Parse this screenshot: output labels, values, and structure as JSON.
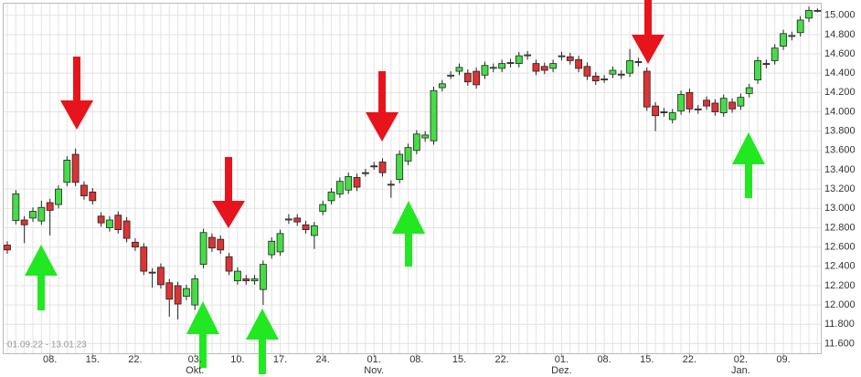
{
  "chart_data": {
    "type": "candlestick",
    "date_range": "01.09.22 - 13.01.23",
    "categories": [
      null,
      null,
      null,
      null,
      null,
      "08.",
      null,
      null,
      null,
      null,
      "15.",
      null,
      null,
      null,
      null,
      "22.",
      null,
      null,
      null,
      null,
      null,
      null,
      "03.",
      null,
      null,
      null,
      null,
      "10.",
      null,
      null,
      null,
      null,
      "17.",
      null,
      null,
      null,
      null,
      "24.",
      null,
      null,
      null,
      null,
      null,
      "01.",
      null,
      null,
      null,
      null,
      "08.",
      null,
      null,
      null,
      null,
      "15.",
      null,
      null,
      null,
      null,
      "22.",
      null,
      null,
      null,
      null,
      null,
      null,
      "01.",
      null,
      null,
      null,
      null,
      "08.",
      null,
      null,
      null,
      null,
      "15.",
      null,
      null,
      null,
      null,
      "22.",
      null,
      null,
      null,
      null,
      null,
      "02.",
      null,
      null,
      null,
      null,
      "09.",
      null,
      null,
      null,
      null
    ],
    "months": [
      null,
      null,
      null,
      null,
      null,
      null,
      null,
      null,
      null,
      null,
      null,
      null,
      null,
      null,
      null,
      null,
      null,
      null,
      null,
      null,
      null,
      null,
      "Okt.",
      null,
      null,
      null,
      null,
      null,
      null,
      null,
      null,
      null,
      null,
      null,
      null,
      null,
      null,
      null,
      null,
      null,
      null,
      null,
      null,
      "Nov.",
      null,
      null,
      null,
      null,
      null,
      null,
      null,
      null,
      null,
      null,
      null,
      null,
      null,
      null,
      null,
      null,
      null,
      null,
      null,
      null,
      null,
      "Dez.",
      null,
      null,
      null,
      null,
      null,
      null,
      null,
      null,
      null,
      null,
      null,
      null,
      null,
      null,
      null,
      null,
      null,
      null,
      null,
      null,
      "Jan.",
      null,
      null,
      null,
      null,
      null,
      null,
      null,
      null,
      null
    ],
    "open": [
      12620,
      12875,
      12880,
      12900,
      12870,
      13060,
      13040,
      13270,
      13560,
      13240,
      13170,
      12920,
      12800,
      12930,
      12870,
      12650,
      12600,
      12340,
      12390,
      12230,
      12200,
      12090,
      12000,
      12420,
      12700,
      12680,
      12500,
      12250,
      12270,
      12250,
      12160,
      12520,
      12550,
      12880,
      12900,
      12830,
      12720,
      12970,
      13080,
      13150,
      13190,
      13320,
      13370,
      13440,
      13480,
      13250,
      13300,
      13490,
      13600,
      13730,
      13700,
      14250,
      14370,
      14420,
      14400,
      14420,
      14380,
      14450,
      14450,
      14500,
      14500,
      14580,
      14500,
      14470,
      14450,
      14570,
      14570,
      14540,
      14470,
      14370,
      14330,
      14390,
      14390,
      14400,
      14520,
      14420,
      14060,
      14000,
      13920,
      14010,
      14200,
      14030,
      14120,
      14090,
      13990,
      14100,
      14060,
      14190,
      14330,
      14500,
      14530,
      14680,
      14780,
      14820,
      14970,
      15050
    ],
    "high": [
      12660,
      13190,
      12920,
      13010,
      13080,
      13100,
      13240,
      13540,
      13620,
      13280,
      13210,
      12960,
      12920,
      12970,
      12910,
      12690,
      12640,
      12380,
      12430,
      12270,
      12240,
      12210,
      12310,
      12790,
      12740,
      12720,
      12540,
      12390,
      12310,
      12310,
      12460,
      12700,
      12780,
      12940,
      12940,
      12870,
      12860,
      13080,
      13210,
      13320,
      13370,
      13360,
      13410,
      13480,
      13520,
      13290,
      13600,
      13670,
      13810,
      13800,
      14260,
      14330,
      14420,
      14500,
      14440,
      14460,
      14520,
      14500,
      14540,
      14550,
      14620,
      14630,
      14540,
      14510,
      14540,
      14620,
      14610,
      14580,
      14510,
      14410,
      14380,
      14470,
      14430,
      14650,
      14560,
      14460,
      14100,
      14040,
      14030,
      14220,
      14240,
      14070,
      14160,
      14130,
      14180,
      14140,
      14190,
      14290,
      14570,
      14540,
      14700,
      14850,
      14830,
      14990,
      15090,
      15070
    ],
    "low": [
      12530,
      12835,
      12640,
      12860,
      12830,
      12720,
      13000,
      13230,
      13230,
      13090,
      13040,
      12810,
      12760,
      12740,
      12650,
      12560,
      12310,
      12180,
      12170,
      11880,
      11850,
      12050,
      11950,
      12380,
      12550,
      12530,
      12310,
      12210,
      12210,
      12210,
      12000,
      12480,
      12510,
      12840,
      12820,
      12740,
      12580,
      12930,
      13040,
      13110,
      13150,
      13180,
      13330,
      13400,
      13330,
      13110,
      13260,
      13450,
      13560,
      13690,
      13660,
      14210,
      14340,
      14380,
      14270,
      14240,
      14340,
      14410,
      14410,
      14460,
      14460,
      14540,
      14380,
      14390,
      14410,
      14530,
      14490,
      14410,
      14330,
      14280,
      14300,
      14350,
      14340,
      14360,
      14470,
      14010,
      13800,
      13950,
      13880,
      13970,
      13990,
      13980,
      14020,
      13960,
      13950,
      13990,
      14020,
      14150,
      14290,
      14450,
      14490,
      14640,
      14740,
      14780,
      14930,
      15030
    ],
    "close": [
      12570,
      13150,
      12830,
      12970,
      13010,
      12980,
      13200,
      13500,
      13270,
      13130,
      13080,
      12850,
      12880,
      12780,
      12690,
      12600,
      12350,
      12330,
      12210,
      12060,
      12010,
      12170,
      12270,
      12750,
      12590,
      12570,
      12350,
      12350,
      12250,
      12270,
      12420,
      12660,
      12740,
      12890,
      12860,
      12780,
      12820,
      13040,
      13170,
      13280,
      13330,
      13220,
      13360,
      13430,
      13370,
      13240,
      13560,
      13630,
      13770,
      13760,
      14220,
      14290,
      14380,
      14460,
      14310,
      14280,
      14480,
      14460,
      14500,
      14510,
      14580,
      14590,
      14420,
      14430,
      14500,
      14580,
      14530,
      14450,
      14370,
      14320,
      14340,
      14430,
      14380,
      14530,
      14510,
      14050,
      13960,
      13990,
      13990,
      14180,
      14030,
      14020,
      14060,
      14000,
      14140,
      14030,
      14150,
      14250,
      14530,
      14490,
      14660,
      14810,
      14790,
      14950,
      15050,
      15050
    ],
    "up_color": "#45dd45",
    "down_color": "#dd3333",
    "ylim": [
      11500,
      15120
    ],
    "yticks": [
      {
        "value": 11600,
        "label": "11.600"
      },
      {
        "value": 11800,
        "label": "11.800"
      },
      {
        "value": 12000,
        "label": "12.000"
      },
      {
        "value": 12200,
        "label": "12.200"
      },
      {
        "value": 12400,
        "label": "12.400"
      },
      {
        "value": 12600,
        "label": "12.600"
      },
      {
        "value": 12800,
        "label": "12.800"
      },
      {
        "value": 13000,
        "label": "13.000"
      },
      {
        "value": 13200,
        "label": "13.200"
      },
      {
        "value": 13400,
        "label": "13.400"
      },
      {
        "value": 13600,
        "label": "13.600"
      },
      {
        "value": 13800,
        "label": "13.800"
      },
      {
        "value": 14000,
        "label": "14.000"
      },
      {
        "value": 14200,
        "label": "14.200"
      },
      {
        "value": 14400,
        "label": "14.400"
      },
      {
        "value": 14600,
        "label": "14.600"
      },
      {
        "value": 14800,
        "label": "14.800"
      },
      {
        "value": 15000,
        "label": "15.000"
      }
    ],
    "grid": true
  }
}
